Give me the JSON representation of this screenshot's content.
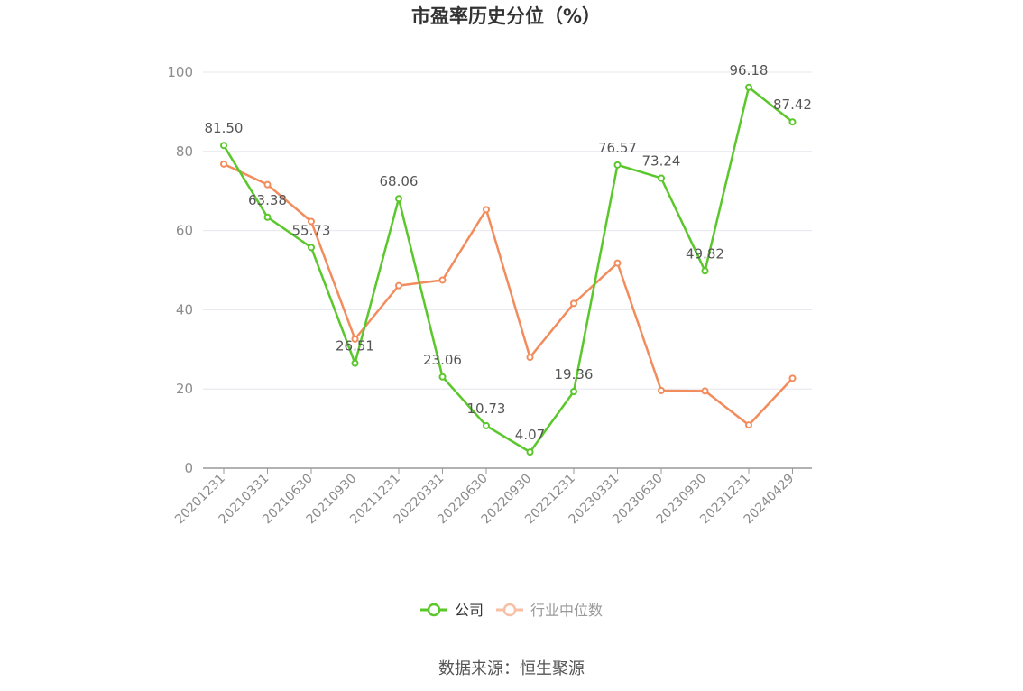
{
  "chart_data": {
    "type": "line",
    "title": "市盈率历史分位（%）",
    "x": [
      "20201231",
      "20210331",
      "20210630",
      "20210930",
      "20211231",
      "20220331",
      "20220630",
      "20220930",
      "20221231",
      "20230331",
      "20230630",
      "20230930",
      "20231231",
      "20240429"
    ],
    "series": [
      {
        "name": "公司",
        "color": "#5ac72b",
        "values": [
          81.5,
          63.38,
          55.73,
          26.51,
          68.06,
          23.06,
          10.73,
          4.07,
          19.36,
          76.57,
          73.24,
          49.82,
          96.18,
          87.42
        ],
        "labels": [
          "81.50",
          "63.38",
          "55.73",
          "26.51",
          "68.06",
          "23.06",
          "10.73",
          "4.07",
          "19.36",
          "76.57",
          "73.24",
          "49.82",
          "96.18",
          "87.42"
        ]
      },
      {
        "name": "行业中位数",
        "color": "#f28c5c",
        "legend_color": "#f8bfa5",
        "values": [
          76.8,
          71.6,
          62.3,
          32.6,
          46.1,
          47.5,
          65.3,
          28.0,
          41.6,
          51.8,
          19.6,
          19.5,
          10.9,
          22.7
        ]
      }
    ],
    "ylim": [
      0,
      100
    ],
    "yticks": [
      0,
      20,
      40,
      60,
      80,
      100
    ],
    "grid": true,
    "legend_position": "bottom-center"
  },
  "source": "数据来源：恒生聚源"
}
